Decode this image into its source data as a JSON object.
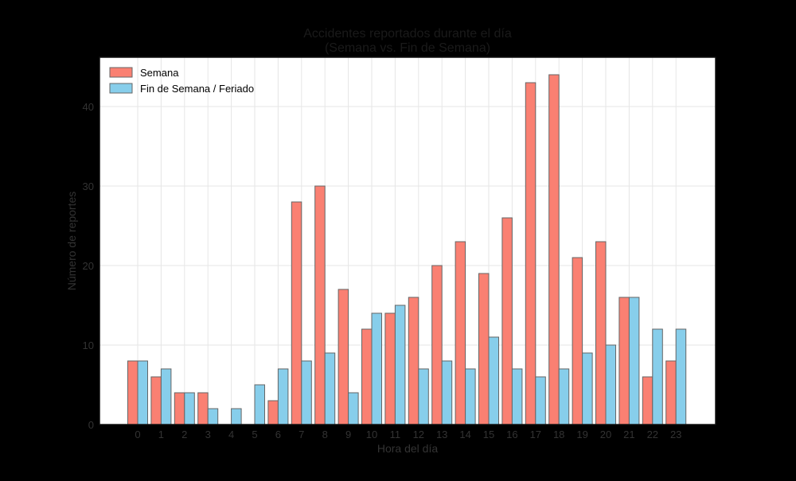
{
  "chart_data": {
    "type": "bar",
    "title": "Accidentes reportados durante el día",
    "subtitle": "(Semana vs. Fin de Semana)",
    "xlabel": "Hora del día",
    "ylabel": "Número de reportes",
    "categories": [
      "0",
      "1",
      "2",
      "3",
      "4",
      "5",
      "6",
      "7",
      "8",
      "9",
      "10",
      "11",
      "12",
      "13",
      "14",
      "15",
      "16",
      "17",
      "18",
      "19",
      "20",
      "21",
      "22",
      "23"
    ],
    "yticks": [
      "0",
      "10",
      "20",
      "30",
      "40"
    ],
    "ylim": [
      0,
      46.2
    ],
    "grid": true,
    "legend_position": "top-left",
    "series": [
      {
        "name": "Semana",
        "color": "#FA8072",
        "values": [
          8,
          6,
          4,
          4,
          0,
          0,
          3,
          28,
          30,
          17,
          12,
          14,
          16,
          20,
          23,
          19,
          26,
          43,
          44,
          21,
          23,
          16,
          6,
          8
        ]
      },
      {
        "name": "Fin de Semana / Feriado",
        "color": "#87CEEB",
        "values": [
          8,
          7,
          4,
          2,
          2,
          5,
          7,
          8,
          9,
          4,
          14,
          15,
          7,
          8,
          7,
          11,
          7,
          6,
          7,
          9,
          10,
          16,
          12,
          12
        ]
      }
    ]
  }
}
